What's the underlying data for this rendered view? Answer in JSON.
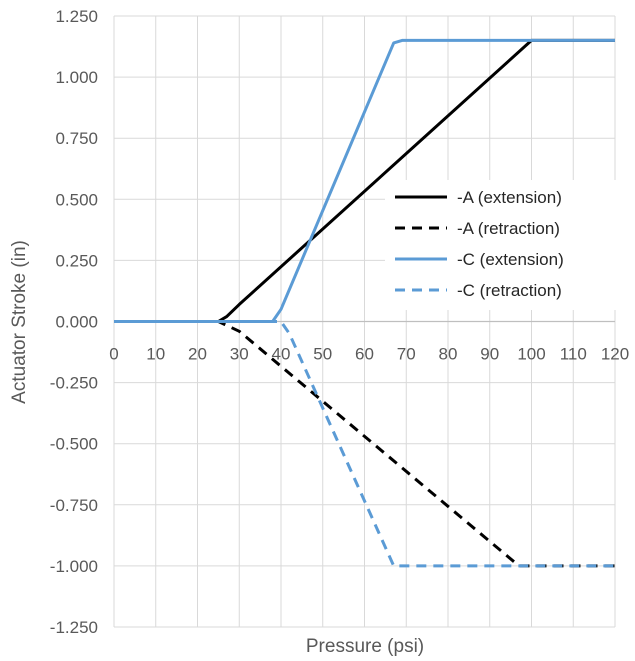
{
  "chart_data": {
    "type": "line",
    "title": "",
    "xlabel": "Pressure (psi)",
    "ylabel": "Actuator Stroke (in)",
    "xlim": [
      0,
      120
    ],
    "ylim": [
      -1.25,
      1.25
    ],
    "x_ticks": [
      0,
      10,
      20,
      30,
      40,
      50,
      60,
      70,
      80,
      90,
      100,
      110,
      120
    ],
    "x_tick_labels": [
      "0",
      "10",
      "20",
      "30",
      "40",
      "50",
      "60",
      "70",
      "80",
      "90",
      "100",
      "110",
      "120"
    ],
    "y_ticks": [
      1.25,
      1.0,
      0.75,
      0.5,
      0.25,
      0.0,
      -0.25,
      -0.5,
      -0.75,
      -1.0,
      -1.25
    ],
    "y_tick_labels": [
      "1.250",
      "1.000",
      "0.750",
      "0.500",
      "0.250",
      "0.000",
      "-0.250",
      "-0.500",
      "-0.750",
      "-1.000",
      "-1.250"
    ],
    "grid": true,
    "legend_position": "right",
    "series": [
      {
        "name": "-A (extension)",
        "color": "#000000",
        "dash": "solid",
        "points": [
          [
            0,
            0
          ],
          [
            25,
            0
          ],
          [
            27,
            0.02
          ],
          [
            30,
            0.07
          ],
          [
            100,
            1.15
          ],
          [
            120,
            1.15
          ]
        ]
      },
      {
        "name": "-A (retraction)",
        "color": "#000000",
        "dash": "dashed",
        "points": [
          [
            0,
            0
          ],
          [
            25,
            0
          ],
          [
            30,
            -0.04
          ],
          [
            97,
            -1.0
          ],
          [
            120,
            -1.0
          ]
        ]
      },
      {
        "name": "-C (extension)",
        "color": "#5b9bd5",
        "dash": "solid",
        "points": [
          [
            0,
            0
          ],
          [
            38,
            0
          ],
          [
            40,
            0.05
          ],
          [
            67,
            1.14
          ],
          [
            69,
            1.15
          ],
          [
            120,
            1.15
          ]
        ]
      },
      {
        "name": "-C (retraction)",
        "color": "#5b9bd5",
        "dash": "dashed",
        "points": [
          [
            0,
            0
          ],
          [
            40,
            0
          ],
          [
            42,
            -0.05
          ],
          [
            67,
            -1.0
          ],
          [
            120,
            -1.0
          ]
        ]
      }
    ]
  }
}
